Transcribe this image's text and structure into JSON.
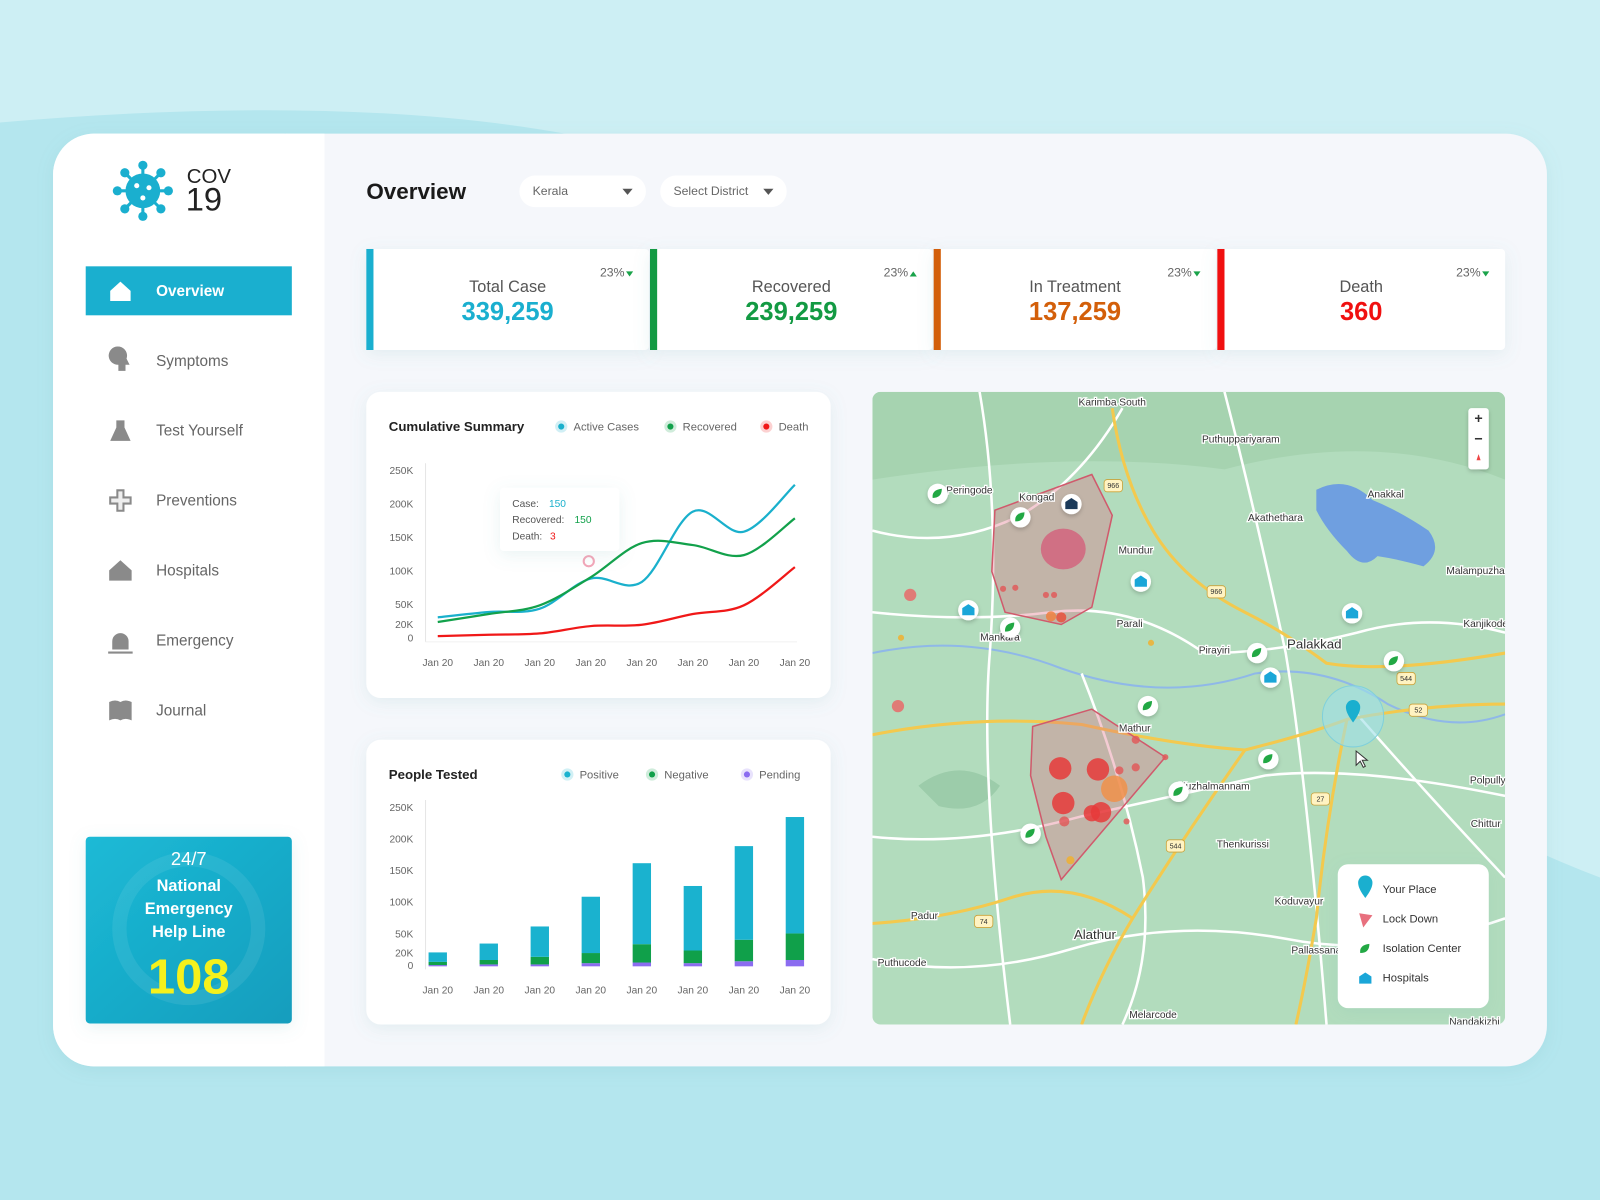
{
  "logo": {
    "line1": "COV",
    "line2": "19"
  },
  "nav": {
    "items": [
      "Overview",
      "Symptoms",
      "Test Yourself",
      "Preventions",
      "Hospitals",
      "Emergency",
      "Journal"
    ],
    "active": 0
  },
  "helpline": {
    "line1": "24/7",
    "title": [
      "National",
      "Emergency",
      "Help Line"
    ],
    "number": "108"
  },
  "header": {
    "title": "Overview",
    "state": "Kerala",
    "district": "Select District"
  },
  "stats": [
    {
      "label": "Total Case",
      "value": "339,259",
      "change": "23%",
      "trend": "down",
      "color": "#1aafcf"
    },
    {
      "label": "Recovered",
      "value": "239,259",
      "change": "23%",
      "trend": "up",
      "color": "#139a43"
    },
    {
      "label": "In Treatment",
      "value": "137,259",
      "change": "23%",
      "trend": "down",
      "color": "#d35f0a"
    },
    {
      "label": "Death",
      "value": "360",
      "change": "23%",
      "trend": "down",
      "color": "#f01010"
    }
  ],
  "chart_data": [
    {
      "type": "line",
      "title": "Cumulative Summary",
      "categories": [
        "Jan 20",
        "Jan 20",
        "Jan 20",
        "Jan 20",
        "Jan 20",
        "Jan 20",
        "Jan 20",
        "Jan 20"
      ],
      "series": [
        {
          "name": "Active Cases",
          "color": "#1ab0cc",
          "values": [
            32000,
            40000,
            45000,
            90000,
            85000,
            190000,
            160000,
            230000
          ]
        },
        {
          "name": "Recovered",
          "color": "#12a14b",
          "values": [
            25000,
            37000,
            50000,
            92000,
            143000,
            140000,
            125000,
            180000
          ]
        },
        {
          "name": "Death",
          "color": "#f01818",
          "values": [
            4000,
            6000,
            8000,
            19000,
            21000,
            37000,
            50000,
            107000
          ]
        }
      ],
      "ylim": [
        0,
        250000
      ],
      "yticks": [
        0,
        {
          "value": 20000,
          "label": "20K"
        },
        {
          "value": 50000,
          "label": "50K"
        },
        {
          "value": 100000,
          "label": "100K"
        },
        {
          "value": 150000,
          "label": "150K"
        },
        {
          "value": 200000,
          "label": "200K"
        },
        {
          "value": 250000,
          "label": "250K"
        }
      ],
      "legend": "top-right",
      "tooltip": [
        {
          "label": "Case:",
          "value": "150"
        },
        {
          "label": "Recovered:",
          "value": "150"
        },
        {
          "label": "Death:",
          "value": "3"
        }
      ]
    },
    {
      "type": "stacked-bar",
      "title": "People Tested",
      "categories": [
        "Jan 20",
        "Jan 20",
        "Jan 20",
        "Jan 20",
        "Jan 20",
        "Jan 20",
        "Jan 20",
        "Jan 20"
      ],
      "series": [
        {
          "name": "Positive",
          "color": "#1ab2cf",
          "values": [
            15000,
            26000,
            48000,
            89000,
            128000,
            102000,
            148000,
            184000
          ]
        },
        {
          "name": "Negative",
          "color": "#10a04a",
          "values": [
            5000,
            7000,
            12000,
            16000,
            29000,
            20000,
            34000,
            42000
          ]
        },
        {
          "name": "Pending",
          "color": "#8b6cf0",
          "values": [
            2000,
            3000,
            3000,
            5000,
            6000,
            5000,
            8000,
            10000
          ]
        }
      ],
      "ylim": [
        0,
        250000
      ],
      "yticks": [
        0,
        {
          "value": 20000,
          "label": "20K"
        },
        {
          "value": 50000,
          "label": "50K"
        },
        {
          "value": 100000,
          "label": "100K"
        },
        {
          "value": 150000,
          "label": "150K"
        },
        {
          "value": 200000,
          "label": "200K"
        },
        {
          "value": 250000,
          "label": "250K"
        }
      ],
      "legend": "top-right"
    }
  ],
  "map": {
    "places": [
      "Karimba South",
      "Puthuppariyaram",
      "Peringode",
      "Kongad",
      "Mundur",
      "Akathethara",
      "Anakkal",
      "Malampuzha",
      "Kanjikode",
      "Parali",
      "Mankara",
      "Pirayiri",
      "Palakkad",
      "Mathur",
      "Kuzhalmannam",
      "Polpully",
      "Chittur",
      "Thenkurissi",
      "Koduvayur",
      "Pallassana",
      "Padur",
      "Puthucode",
      "Alathur",
      "Melarcode",
      "Nandakizhi"
    ],
    "roads": [
      "966",
      "966",
      "544",
      "52",
      "27",
      "544",
      "74"
    ],
    "zoom": [
      "+",
      "−"
    ],
    "legend": [
      "Your Place",
      "Lock Down",
      "Isolation Center",
      "Hospitals"
    ]
  }
}
